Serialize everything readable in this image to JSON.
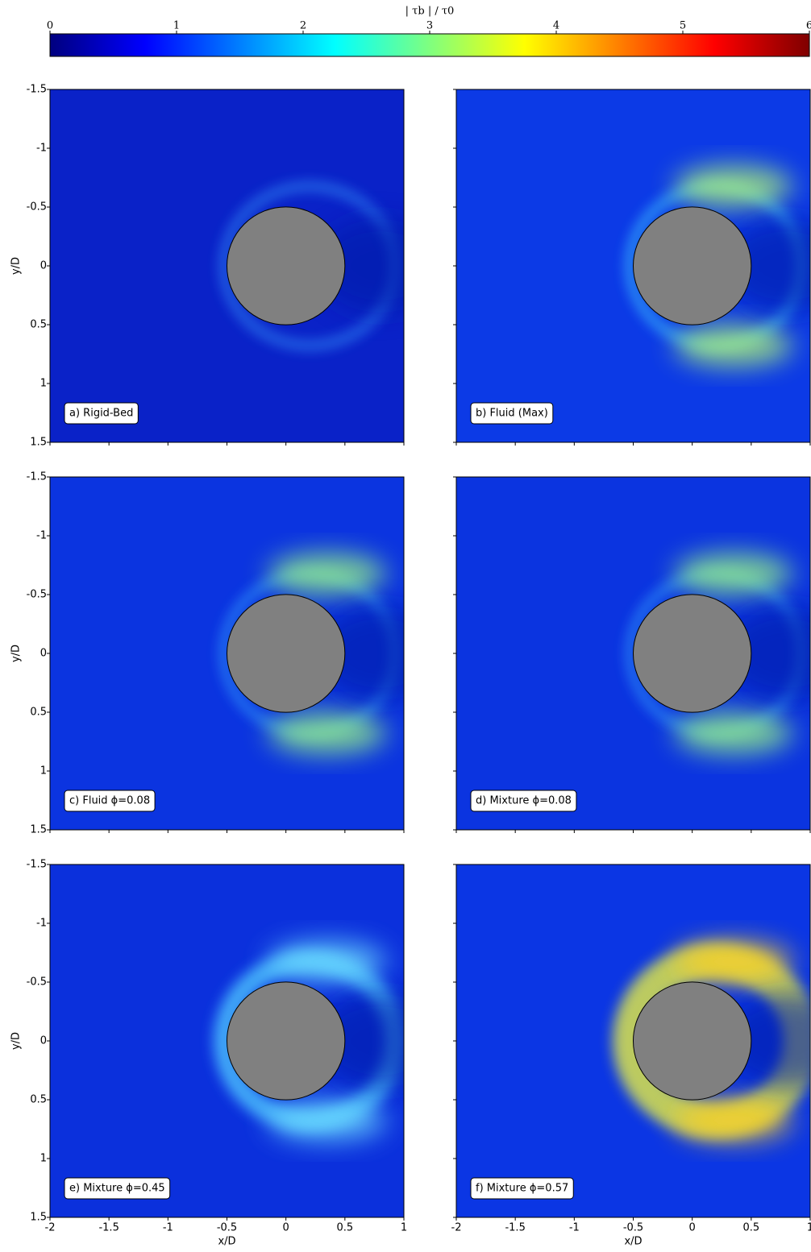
{
  "chart_data": {
    "type": "heatmap",
    "colorbar": {
      "label": "| τb | / τ0",
      "lim": [
        0,
        6
      ],
      "ticks": [
        0,
        1,
        2,
        3,
        4,
        5,
        6
      ],
      "colormap": [
        "#00007f",
        "#0000ff",
        "#007fff",
        "#00ffff",
        "#7fff7f",
        "#ffff00",
        "#ff7f00",
        "#ff0000",
        "#7f0000"
      ]
    },
    "xlim": [
      -2,
      1
    ],
    "ylim": [
      1.5,
      -1.5
    ],
    "xticks": [
      -2,
      -1.5,
      -1,
      -0.5,
      0,
      0.5,
      1
    ],
    "yticks": [
      -1.5,
      -1,
      -0.5,
      0,
      0.5,
      1,
      1.5
    ],
    "xlabel": "x/D",
    "ylabel": "y/D",
    "obstacle": {
      "x": 0,
      "y": 0,
      "r": 0.5,
      "color": "#808080"
    },
    "panels": [
      {
        "label": "a) Rigid-Bed"
      },
      {
        "label": "b) Fluid (Max)"
      },
      {
        "label": "c) Fluid ϕ=0.08"
      },
      {
        "label": "d) Mixture ϕ=0.08"
      },
      {
        "label": "e) Mixture ϕ=0.45"
      },
      {
        "label": "f) Mixture ϕ=0.57"
      }
    ]
  }
}
